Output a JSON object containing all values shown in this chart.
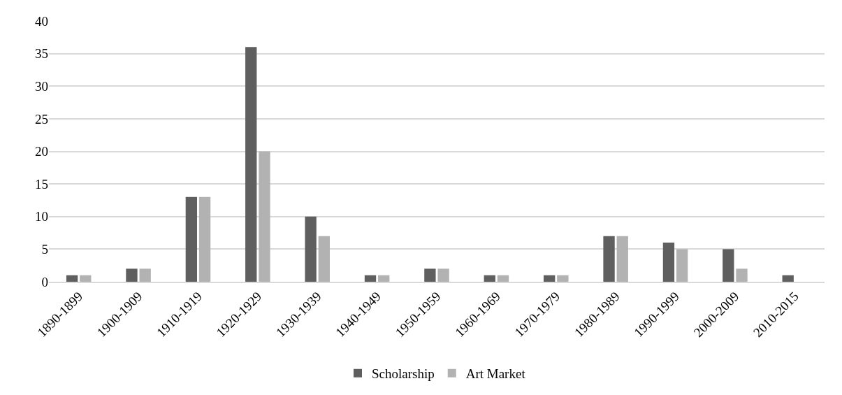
{
  "chart_data": {
    "type": "bar",
    "categories": [
      "1890-1899",
      "1900-1909",
      "1910-1919",
      "1920-1929",
      "1930-1939",
      "1940-1949",
      "1950-1959",
      "1960-1969",
      "1970-1979",
      "1980-1989",
      "1990-1999",
      "2000-2009",
      "2010-2015"
    ],
    "series": [
      {
        "name": "Scholarship",
        "color": "#5f5f5f",
        "values": [
          1,
          2,
          13,
          36,
          10,
          1,
          2,
          1,
          1,
          7,
          6,
          5,
          1
        ]
      },
      {
        "name": "Art Market",
        "color": "#b2b2b2",
        "values": [
          1,
          2,
          13,
          20,
          7,
          1,
          2,
          1,
          1,
          7,
          5,
          2,
          0
        ]
      }
    ],
    "ylim": [
      0,
      40
    ],
    "yticks": [
      0,
      5,
      10,
      15,
      20,
      25,
      30,
      35,
      40
    ],
    "grid": "y",
    "legend": "bottom"
  }
}
